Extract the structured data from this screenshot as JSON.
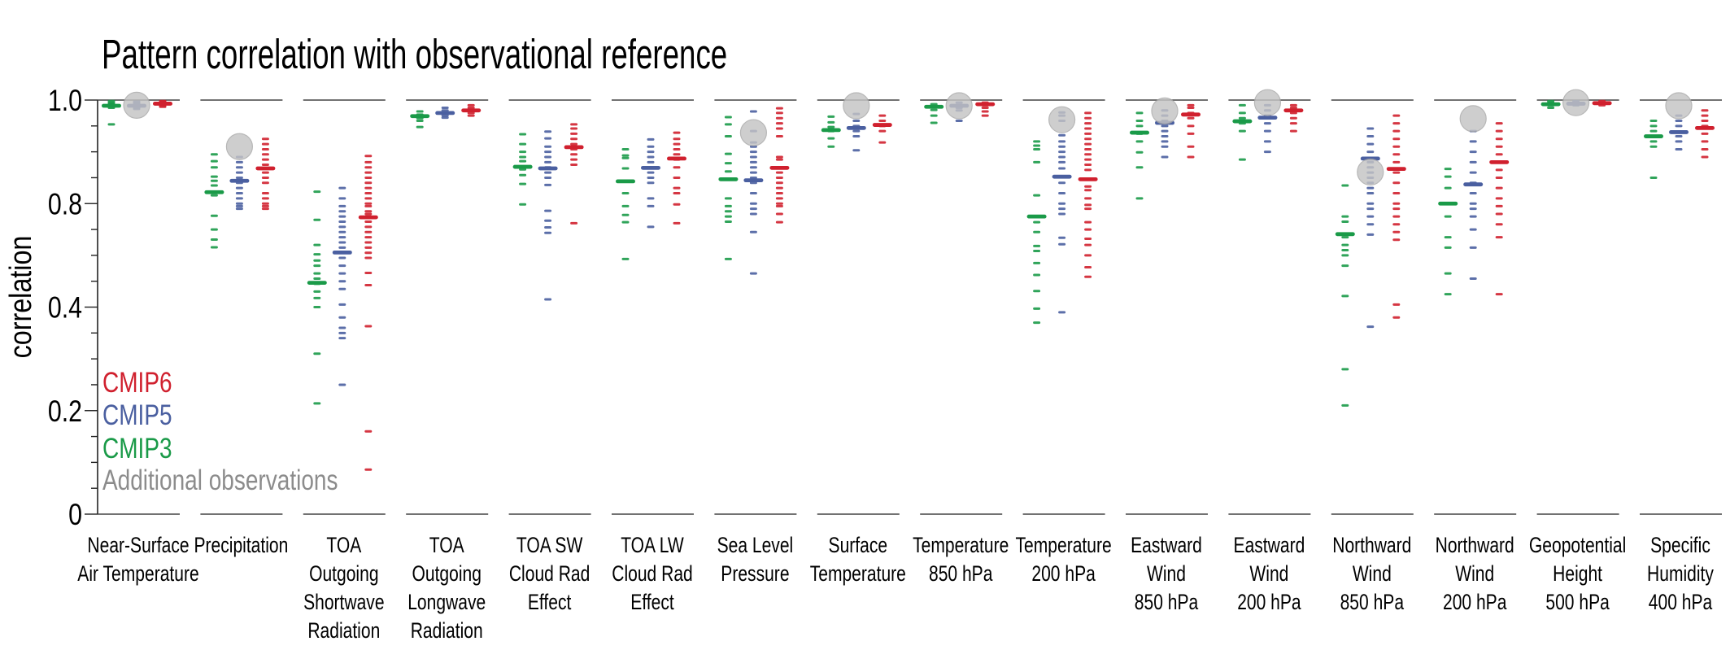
{
  "chart_data": {
    "type": "scatter",
    "title": "Pattern correlation with observational reference",
    "ylabel": "correlation",
    "xlabel": "",
    "ylim": [
      0,
      1.0
    ],
    "y_scale": "nonlinear (evenly spaced ticks 1.0, 0.8, 0.4, 0.2, 0)",
    "yticks": [
      1.0,
      0.8,
      0.4,
      0.2,
      0
    ],
    "ytick_labels": [
      "1.0",
      "0.8",
      "0.4",
      "0.2",
      "0"
    ],
    "grid": false,
    "legend_placement": "bottom-left",
    "legend": [
      {
        "key": "cmip6",
        "label": "CMIP6",
        "color": "#d0202e"
      },
      {
        "key": "cmip5",
        "label": "CMIP5",
        "color": "#4a5fa0"
      },
      {
        "key": "cmip3",
        "label": "CMIP3",
        "color": "#1a9a48"
      },
      {
        "key": "obs",
        "label": "Additional observations",
        "color": "#8c8c8c"
      }
    ],
    "obs_marker_color": "#c4c4c4",
    "panels": [
      {
        "label": [
          "Near-Surface",
          "Air Temperature"
        ],
        "cmip3": {
          "mean": 0.989,
          "models": [
            0.998,
            0.995,
            0.993,
            0.991,
            0.989,
            0.987,
            0.985,
            0.953
          ]
        },
        "cmip5": {
          "mean": 0.989,
          "models": [
            0.997,
            0.995,
            0.993,
            0.991,
            0.989,
            0.987,
            0.985,
            0.983
          ]
        },
        "cmip6": {
          "mean": 0.993,
          "models": [
            0.998,
            0.997,
            0.995,
            0.993,
            0.991,
            0.989,
            0.987
          ]
        },
        "obs": [
          0.99
        ]
      },
      {
        "label": [
          "Precipitation"
        ],
        "cmip3": {
          "mean": 0.822,
          "models": [
            0.895,
            0.882,
            0.87,
            0.852,
            0.844,
            0.835,
            0.822,
            0.816,
            0.753,
            0.7,
            0.661,
            0.631
          ]
        },
        "cmip5": {
          "mean": 0.844,
          "models": [
            0.89,
            0.88,
            0.87,
            0.86,
            0.85,
            0.84,
            0.83,
            0.82,
            0.81,
            0.8,
            0.79,
            0.78
          ]
        },
        "cmip6": {
          "mean": 0.868,
          "models": [
            0.925,
            0.915,
            0.905,
            0.895,
            0.885,
            0.875,
            0.868,
            0.86,
            0.85,
            0.84,
            0.82,
            0.81,
            0.8,
            0.79,
            0.78
          ]
        },
        "obs": [
          0.91
        ]
      },
      {
        "label": [
          "TOA",
          "Outgoing",
          "Shortwave",
          "Radiation"
        ],
        "cmip3": {
          "mean": 0.494,
          "models": [
            0.823,
            0.737,
            0.64,
            0.604,
            0.58,
            0.56,
            0.53,
            0.51,
            0.49,
            0.46,
            0.435,
            0.4,
            0.31,
            0.214
          ]
        },
        "cmip5": {
          "mean": 0.611,
          "models": [
            0.83,
            0.81,
            0.79,
            0.77,
            0.75,
            0.73,
            0.71,
            0.69,
            0.67,
            0.65,
            0.63,
            0.61,
            0.59,
            0.56,
            0.53,
            0.5,
            0.47,
            0.41,
            0.38,
            0.36,
            0.35,
            0.34,
            0.25
          ]
        },
        "cmip6": {
          "mean": 0.747,
          "models": [
            0.892,
            0.88,
            0.87,
            0.86,
            0.85,
            0.84,
            0.83,
            0.82,
            0.81,
            0.8,
            0.79,
            0.77,
            0.76,
            0.75,
            0.73,
            0.71,
            0.69,
            0.67,
            0.65,
            0.63,
            0.61,
            0.59,
            0.532,
            0.485,
            0.363,
            0.16,
            0.086
          ]
        },
        "obs": []
      },
      {
        "label": [
          "TOA",
          "Outgoing",
          "Longwave",
          "Radiation"
        ],
        "cmip3": {
          "mean": 0.969,
          "models": [
            0.978,
            0.972,
            0.965,
            0.96,
            0.948
          ]
        },
        "cmip5": {
          "mean": 0.975,
          "models": [
            0.985,
            0.98,
            0.975,
            0.97,
            0.966
          ]
        },
        "cmip6": {
          "mean": 0.98,
          "models": [
            0.99,
            0.985,
            0.98,
            0.975,
            0.97
          ]
        },
        "obs": []
      },
      {
        "label": [
          "TOA SW",
          "Cloud Rad",
          "Effect"
        ],
        "cmip3": {
          "mean": 0.871,
          "models": [
            0.934,
            0.915,
            0.9,
            0.89,
            0.882,
            0.866,
            0.855,
            0.838,
            0.797
          ]
        },
        "cmip5": {
          "mean": 0.868,
          "models": [
            0.939,
            0.926,
            0.91,
            0.9,
            0.89,
            0.88,
            0.87,
            0.86,
            0.85,
            0.836,
            0.772,
            0.734,
            0.708,
            0.687,
            0.43
          ]
        },
        "cmip6": {
          "mean": 0.909,
          "models": [
            0.953,
            0.945,
            0.935,
            0.925,
            0.915,
            0.905,
            0.895,
            0.885,
            0.875,
            0.724
          ]
        },
        "obs": []
      },
      {
        "label": [
          "TOA LW",
          "Cloud Rad",
          "Effect"
        ],
        "cmip3": {
          "mean": 0.843,
          "models": [
            0.905,
            0.893,
            0.888,
            0.868,
            0.82,
            0.79,
            0.756,
            0.728,
            0.586
          ]
        },
        "cmip5": {
          "mean": 0.869,
          "models": [
            0.924,
            0.91,
            0.9,
            0.89,
            0.88,
            0.87,
            0.86,
            0.85,
            0.84,
            0.81,
            0.79,
            0.71
          ]
        },
        "cmip6": {
          "mean": 0.887,
          "models": [
            0.937,
            0.925,
            0.915,
            0.905,
            0.895,
            0.885,
            0.87,
            0.85,
            0.83,
            0.82,
            0.797,
            0.724
          ]
        },
        "obs": []
      },
      {
        "label": [
          "Sea Level",
          "Pressure"
        ],
        "cmip3": {
          "mean": 0.847,
          "models": [
            0.967,
            0.953,
            0.93,
            0.896,
            0.878,
            0.862,
            0.81,
            0.79,
            0.77,
            0.75,
            0.73,
            0.586
          ]
        },
        "cmip5": {
          "mean": 0.845,
          "models": [
            0.978,
            0.94,
            0.918,
            0.91,
            0.9,
            0.89,
            0.88,
            0.87,
            0.86,
            0.85,
            0.84,
            0.82,
            0.8,
            0.78,
            0.76,
            0.69,
            0.53
          ]
        },
        "cmip6": {
          "mean": 0.869,
          "models": [
            0.984,
            0.975,
            0.965,
            0.955,
            0.945,
            0.93,
            0.89,
            0.885,
            0.87,
            0.86,
            0.85,
            0.84,
            0.83,
            0.82,
            0.81,
            0.8,
            0.79,
            0.76,
            0.728
          ]
        },
        "obs": [
          0.937
        ]
      },
      {
        "label": [
          "Surface",
          "Temperature"
        ],
        "cmip3": {
          "mean": 0.942,
          "models": [
            0.968,
            0.957,
            0.948,
            0.94,
            0.926,
            0.91
          ]
        },
        "cmip5": {
          "mean": 0.946,
          "models": [
            0.973,
            0.96,
            0.95,
            0.94,
            0.93,
            0.903
          ]
        },
        "cmip6": {
          "mean": 0.952,
          "models": [
            0.97,
            0.96,
            0.95,
            0.94,
            0.918
          ]
        },
        "obs": [
          0.989
        ]
      },
      {
        "label": [
          "Temperature",
          "850 hPa"
        ],
        "cmip3": {
          "mean": 0.987,
          "models": [
            0.992,
            0.987,
            0.981,
            0.97,
            0.956
          ]
        },
        "cmip5": {
          "mean": 0.989,
          "models": [
            0.995,
            0.99,
            0.985,
            0.98,
            0.96
          ]
        },
        "cmip6": {
          "mean": 0.992,
          "models": [
            0.995,
            0.99,
            0.985,
            0.978,
            0.97
          ]
        },
        "obs": [
          0.989
        ]
      },
      {
        "label": [
          "Temperature",
          "200 hPa"
        ],
        "cmip3": {
          "mean": 0.75,
          "models": [
            0.92,
            0.912,
            0.905,
            0.88,
            0.816,
            0.728,
            0.69,
            0.636,
            0.617,
            0.57,
            0.524,
            0.462,
            0.397,
            0.37
          ]
        },
        "cmip5": {
          "mean": 0.852,
          "models": [
            0.976,
            0.97,
            0.96,
            0.932,
            0.92,
            0.91,
            0.9,
            0.89,
            0.88,
            0.868,
            0.84,
            0.82,
            0.8,
            0.78,
            0.76,
            0.668,
            0.643,
            0.39
          ]
        },
        "cmip6": {
          "mean": 0.847,
          "models": [
            0.975,
            0.965,
            0.955,
            0.945,
            0.935,
            0.925,
            0.915,
            0.905,
            0.895,
            0.885,
            0.875,
            0.865,
            0.833,
            0.826,
            0.81,
            0.795,
            0.78,
            0.728,
            0.7,
            0.664,
            0.64,
            0.6,
            0.554,
            0.517
          ]
        },
        "obs": [
          0.962
        ]
      },
      {
        "label": [
          "Eastward",
          "Wind",
          "850 hPa"
        ],
        "cmip3": {
          "mean": 0.937,
          "models": [
            0.975,
            0.96,
            0.95,
            0.935,
            0.92,
            0.899,
            0.87,
            0.81
          ]
        },
        "cmip5": {
          "mean": 0.956,
          "models": [
            0.98,
            0.97,
            0.96,
            0.95,
            0.94,
            0.93,
            0.92,
            0.91,
            0.89
          ]
        },
        "cmip6": {
          "mean": 0.972,
          "models": [
            0.99,
            0.985,
            0.975,
            0.965,
            0.95,
            0.935,
            0.91,
            0.89
          ]
        },
        "obs": [
          0.979
        ]
      },
      {
        "label": [
          "Eastward",
          "Wind",
          "200 hPa"
        ],
        "cmip3": {
          "mean": 0.959,
          "models": [
            0.99,
            0.975,
            0.965,
            0.955,
            0.94,
            0.885
          ]
        },
        "cmip5": {
          "mean": 0.966,
          "models": [
            0.99,
            0.98,
            0.97,
            0.955,
            0.94,
            0.92,
            0.9
          ]
        },
        "cmip6": {
          "mean": 0.98,
          "models": [
            0.99,
            0.985,
            0.975,
            0.965,
            0.955,
            0.94
          ]
        },
        "obs": [
          0.995
        ]
      },
      {
        "label": [
          "Northward",
          "Wind",
          "850 hPa"
        ],
        "cmip3": {
          "mean": 0.682,
          "models": [
            0.835,
            0.75,
            0.73,
            0.67,
            0.64,
            0.62,
            0.6,
            0.56,
            0.443,
            0.28,
            0.21
          ]
        },
        "cmip5": {
          "mean": 0.887,
          "models": [
            0.945,
            0.93,
            0.915,
            0.9,
            0.88,
            0.87,
            0.86,
            0.85,
            0.84,
            0.83,
            0.82,
            0.8,
            0.78,
            0.75,
            0.72,
            0.68,
            0.362
          ]
        },
        "cmip6": {
          "mean": 0.867,
          "models": [
            0.97,
            0.955,
            0.94,
            0.925,
            0.91,
            0.895,
            0.88,
            0.86,
            0.84,
            0.82,
            0.8,
            0.78,
            0.75,
            0.72,
            0.69,
            0.66,
            0.41,
            0.38
          ]
        },
        "obs": [
          0.861
        ]
      },
      {
        "label": [
          "Northward",
          "Wind",
          "200 hPa"
        ],
        "cmip3": {
          "mean": 0.8,
          "models": [
            0.867,
            0.852,
            0.83,
            0.8,
            0.75,
            0.67,
            0.63,
            0.53,
            0.45
          ]
        },
        "cmip5": {
          "mean": 0.837,
          "models": [
            0.94,
            0.92,
            0.9,
            0.88,
            0.86,
            0.84,
            0.82,
            0.8,
            0.78,
            0.75,
            0.7,
            0.63,
            0.51
          ]
        },
        "cmip6": {
          "mean": 0.88,
          "models": [
            0.955,
            0.94,
            0.925,
            0.91,
            0.895,
            0.88,
            0.865,
            0.85,
            0.83,
            0.81,
            0.79,
            0.76,
            0.72,
            0.67,
            0.45
          ]
        },
        "obs": [
          0.964
        ]
      },
      {
        "label": [
          "Geopotential",
          "Height",
          "500 hPa"
        ],
        "cmip3": {
          "mean": 0.992,
          "models": [
            0.998,
            0.995,
            0.99,
            0.985
          ]
        },
        "cmip5": {
          "mean": 0.993,
          "models": [
            0.998,
            0.995,
            0.99
          ]
        },
        "cmip6": {
          "mean": 0.994,
          "models": [
            0.998,
            0.995,
            0.99
          ]
        },
        "obs": [
          0.995
        ]
      },
      {
        "label": [
          "Specific",
          "Humidity",
          "400 hPa"
        ],
        "cmip3": {
          "mean": 0.93,
          "models": [
            0.96,
            0.95,
            0.94,
            0.92,
            0.91,
            0.85
          ]
        },
        "cmip5": {
          "mean": 0.938,
          "models": [
            0.97,
            0.96,
            0.95,
            0.93,
            0.92,
            0.905
          ]
        },
        "cmip6": {
          "mean": 0.946,
          "models": [
            0.98,
            0.97,
            0.96,
            0.95,
            0.935,
            0.92,
            0.905,
            0.89
          ]
        },
        "obs": [
          0.989
        ]
      }
    ]
  }
}
